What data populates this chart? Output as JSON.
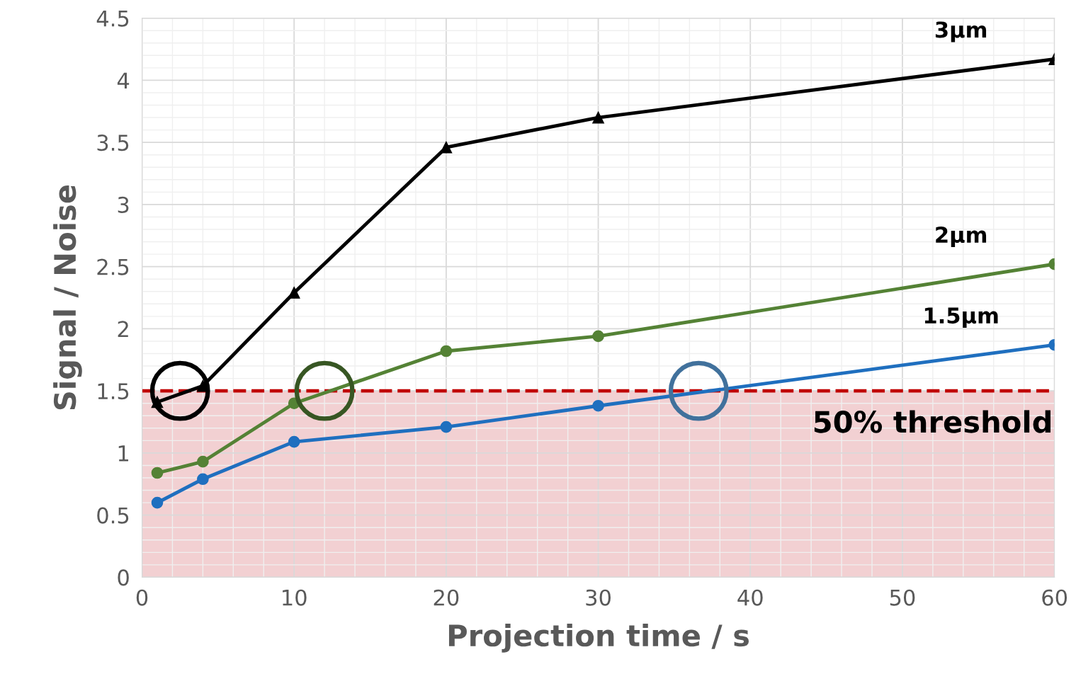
{
  "chart_data": {
    "type": "line",
    "xlabel": "Projection time / s",
    "ylabel": "Signal / Noise",
    "xlim": [
      0,
      60
    ],
    "xticks": [
      0,
      10,
      20,
      30,
      40,
      50,
      60
    ],
    "ylim": [
      0,
      4.5
    ],
    "yticks": [
      0,
      0.5,
      1,
      1.5,
      2,
      2.5,
      3,
      3.5,
      4,
      4.5
    ],
    "grid": true,
    "line_style": "solid",
    "series": [
      {
        "name": "3μm",
        "color": "#000000",
        "marker": "triangle",
        "x": [
          1,
          4,
          10,
          20,
          30,
          60
        ],
        "values": [
          1.41,
          1.54,
          2.29,
          3.46,
          3.7,
          4.17
        ]
      },
      {
        "name": "2μm",
        "color": "#548235",
        "marker": "circle",
        "x": [
          1,
          4,
          10,
          20,
          30,
          60
        ],
        "values": [
          0.84,
          0.93,
          1.4,
          1.82,
          1.94,
          2.52
        ]
      },
      {
        "name": "1.5μm",
        "color": "#1f6fbf",
        "marker": "circle",
        "x": [
          1,
          4,
          10,
          20,
          30,
          60
        ],
        "values": [
          0.6,
          0.79,
          1.09,
          1.21,
          1.38,
          1.87
        ]
      },
      {
        "type": "scatter",
        "marker": "circle",
        "x": [
          2.5,
          12,
          36.6
        ],
        "values": [
          1.5,
          1.5,
          1.5
        ],
        "colors": [
          "#000000",
          "#375623",
          "#41719c"
        ]
      }
    ],
    "ref_lines": [
      {
        "axis": "y",
        "value": 1.5,
        "color": "#c00000",
        "line_style": "dashed"
      }
    ],
    "bands": [
      {
        "axis": "y",
        "from": 0,
        "to": 1.5,
        "label": "50% threshold",
        "color": "#f2d0d2"
      }
    ]
  }
}
